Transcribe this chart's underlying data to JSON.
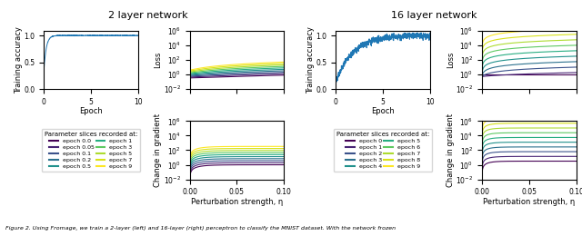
{
  "title_left": "2 layer network",
  "title_right": "16 layer network",
  "xlabel_top": "Epoch",
  "xlabel_bot": "Perturbation strength, η",
  "ylabel_acc": "Training accuracy",
  "ylabel_loss": "Loss",
  "ylabel_grad": "Change in gradient",
  "legend_title": "Parameter slices recorded at:",
  "epochs_left_col1": [
    "epoch 0.0",
    "epoch 0.05",
    "epoch 0.1",
    "epoch 0.2",
    "epoch 0.5"
  ],
  "epochs_left_col2": [
    "epoch 1",
    "epoch 3",
    "epoch 5",
    "epoch 7",
    "epoch 9"
  ],
  "epochs_right_col1": [
    "epoch 0",
    "epoch 1",
    "epoch 2",
    "epoch 3",
    "epoch 4"
  ],
  "epochs_right_col2": [
    "epoch 5",
    "epoch 6",
    "epoch 7",
    "epoch 8",
    "epoch 9"
  ],
  "epoch_colors": [
    "#440154",
    "#482475",
    "#3b528b",
    "#2c718e",
    "#21918c",
    "#27ad81",
    "#5ec962",
    "#addc30",
    "#d8e219",
    "#fde725"
  ],
  "caption": "Figure 2. Using Fromage, we train a 2-layer (left) and 16-layer (right) perceptron to classify the MNIST dataset. With the network frozen"
}
